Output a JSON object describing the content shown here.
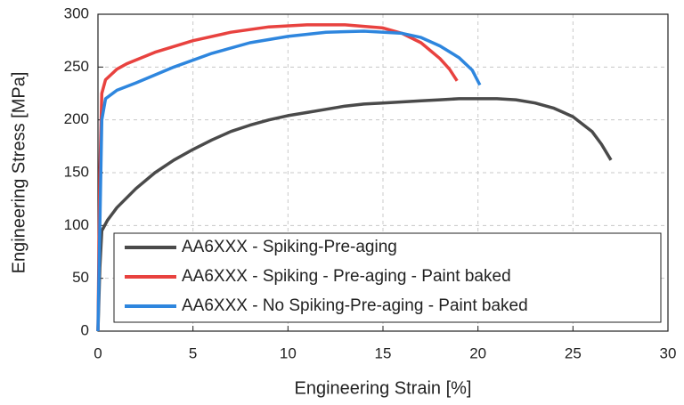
{
  "chart_data": {
    "type": "line",
    "x_label": "Engineering Strain [%]",
    "y_label": "Engineering Stress [MPa]",
    "xlim": [
      0,
      30
    ],
    "xticks": [
      0,
      5,
      10,
      15,
      20,
      25,
      30
    ],
    "ylim": [
      0,
      300
    ],
    "yticks": [
      0,
      50,
      100,
      150,
      200,
      250,
      300
    ],
    "grid": true,
    "legend": "lower-right",
    "series": [
      {
        "name": "AA6XXX - Spiking-Pre-aging",
        "color": "#4a4a4a",
        "x": [
          0,
          0.1,
          0.2,
          0.5,
          1,
          2,
          3,
          4,
          5,
          6,
          7,
          8,
          9,
          10,
          11,
          12,
          13,
          14,
          15,
          16,
          17,
          18,
          19,
          20,
          21,
          22,
          23,
          24,
          25,
          26,
          26.5,
          27
        ],
        "values": [
          0,
          60,
          95,
          105,
          117,
          135,
          150,
          162,
          172,
          181,
          189,
          195,
          200,
          204,
          207,
          210,
          213,
          215,
          216,
          217,
          218,
          219,
          220,
          220,
          220,
          219,
          216,
          211,
          203,
          189,
          177,
          162
        ]
      },
      {
        "name": "AA6XXX - Spiking - Pre-aging - Paint baked",
        "color": "#e8423f",
        "x": [
          0,
          0.1,
          0.2,
          0.4,
          1,
          1.5,
          3,
          5,
          7,
          9,
          11,
          13,
          15,
          16,
          17,
          18,
          18.5,
          18.9
        ],
        "values": [
          0,
          150,
          225,
          238,
          248,
          253,
          264,
          275,
          283,
          288,
          290,
          290,
          287,
          282,
          273,
          258,
          248,
          237
        ]
      },
      {
        "name": "AA6XXX - No Spiking-Pre-aging - Paint baked",
        "color": "#2e86de",
        "x": [
          0,
          0.1,
          0.2,
          0.4,
          1,
          2,
          4,
          6,
          8,
          10,
          12,
          14,
          16,
          17,
          18,
          19,
          19.7,
          20.1
        ],
        "values": [
          0,
          100,
          200,
          220,
          228,
          235,
          250,
          263,
          273,
          279,
          283,
          284,
          282,
          278,
          270,
          259,
          247,
          233
        ]
      }
    ]
  }
}
